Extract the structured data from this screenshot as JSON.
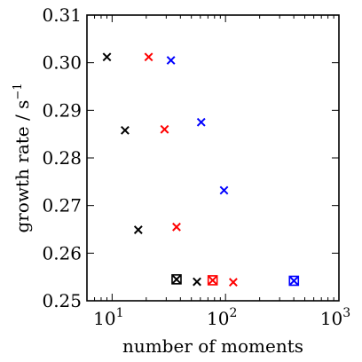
{
  "chart_data": {
    "type": "scatter",
    "title": "",
    "xlabel": "number of moments",
    "ylabel": "growth rate / s",
    "ylabel_superscript": "−1",
    "xscale": "log",
    "xlim": [
      6,
      1000
    ],
    "ylim": [
      0.25,
      0.31
    ],
    "grid": false,
    "x_ticks": [
      {
        "value": 10,
        "base": "10",
        "exp": "1"
      },
      {
        "value": 100,
        "base": "10",
        "exp": "2"
      },
      {
        "value": 1000,
        "base": "10",
        "exp": "3"
      }
    ],
    "y_ticks": [
      {
        "value": 0.25,
        "label": "0.25"
      },
      {
        "value": 0.26,
        "label": "0.26"
      },
      {
        "value": 0.27,
        "label": "0.27"
      },
      {
        "value": 0.28,
        "label": "0.28"
      },
      {
        "value": 0.29,
        "label": "0.29"
      },
      {
        "value": 0.3,
        "label": "0.30"
      },
      {
        "value": 0.31,
        "label": "0.31"
      }
    ],
    "series": [
      {
        "color": "#000000",
        "marker": "x",
        "points": [
          {
            "x": 9,
            "y": 0.3012
          },
          {
            "x": 13,
            "y": 0.2858
          },
          {
            "x": 17,
            "y": 0.2649
          },
          {
            "x": 56,
            "y": 0.254
          }
        ]
      },
      {
        "color": "#000000",
        "marker": "square-x",
        "points": [
          {
            "x": 37,
            "y": 0.2545
          }
        ]
      },
      {
        "color": "#ff0000",
        "marker": "x",
        "points": [
          {
            "x": 21,
            "y": 0.3012
          },
          {
            "x": 29,
            "y": 0.286
          },
          {
            "x": 37,
            "y": 0.2655
          },
          {
            "x": 117,
            "y": 0.2539
          }
        ]
      },
      {
        "color": "#ff0000",
        "marker": "square-x",
        "points": [
          {
            "x": 77,
            "y": 0.2543
          }
        ]
      },
      {
        "color": "#0000ff",
        "marker": "x",
        "points": [
          {
            "x": 33,
            "y": 0.3005
          },
          {
            "x": 61,
            "y": 0.2875
          },
          {
            "x": 97,
            "y": 0.2732
          }
        ]
      },
      {
        "color": "#0000ff",
        "marker": "square-x",
        "points": [
          {
            "x": 401,
            "y": 0.2542
          }
        ]
      }
    ]
  }
}
